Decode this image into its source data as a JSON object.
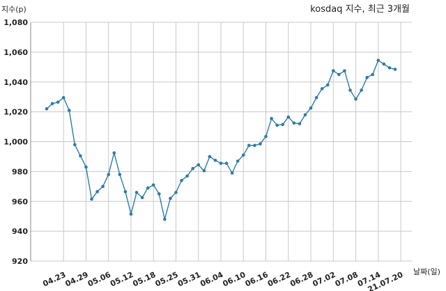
{
  "chart_data": {
    "type": "line",
    "title": "kosdaq 지수, 최근 3개월",
    "xlabel": "날짜(일)",
    "ylabel": "지수(p)",
    "ylim": [
      920,
      1080
    ],
    "y_ticks": [
      920,
      940,
      960,
      980,
      1000,
      1020,
      1040,
      1060,
      1080
    ],
    "y_tick_labels": [
      "920",
      "940",
      "960",
      "980",
      "1,000",
      "1,020",
      "1,040",
      "1,060",
      "1,080"
    ],
    "x_tick_labels": [
      "04.23",
      "04.29",
      "05.06",
      "05.12",
      "05.18",
      "05.25",
      "05.31",
      "06.04",
      "06.10",
      "06.16",
      "06.22",
      "06.28",
      "07.02",
      "07.08",
      "07.14",
      "21.07.20"
    ],
    "x_tick_indices": [
      3,
      7,
      11,
      15,
      19,
      23,
      27,
      31,
      35,
      39,
      43,
      47,
      51,
      55,
      59,
      63
    ],
    "grid": true,
    "line_color": "#2b7bab",
    "series": [
      {
        "values": [
          1022,
          1025.5,
          1026.5,
          1029.5,
          1021,
          998,
          990.5,
          983,
          961.5,
          966.5,
          970,
          978,
          992.5,
          978,
          966.5,
          951.5,
          966,
          962.5,
          969,
          971,
          965,
          948,
          962,
          966,
          974,
          977,
          982,
          984.5,
          980.5,
          990,
          987.5,
          985.5,
          985.5,
          979,
          987,
          991,
          997.5,
          997.5,
          998.5,
          1003.5,
          1015.5,
          1011,
          1011.5,
          1016.5,
          1012.5,
          1012,
          1018,
          1022.5,
          1029.5,
          1035.5,
          1038,
          1047.5,
          1045,
          1047.5,
          1034.5,
          1028.5,
          1034.5,
          1043,
          1045,
          1054.5,
          1052,
          1049.5,
          1048.5
        ]
      }
    ]
  }
}
